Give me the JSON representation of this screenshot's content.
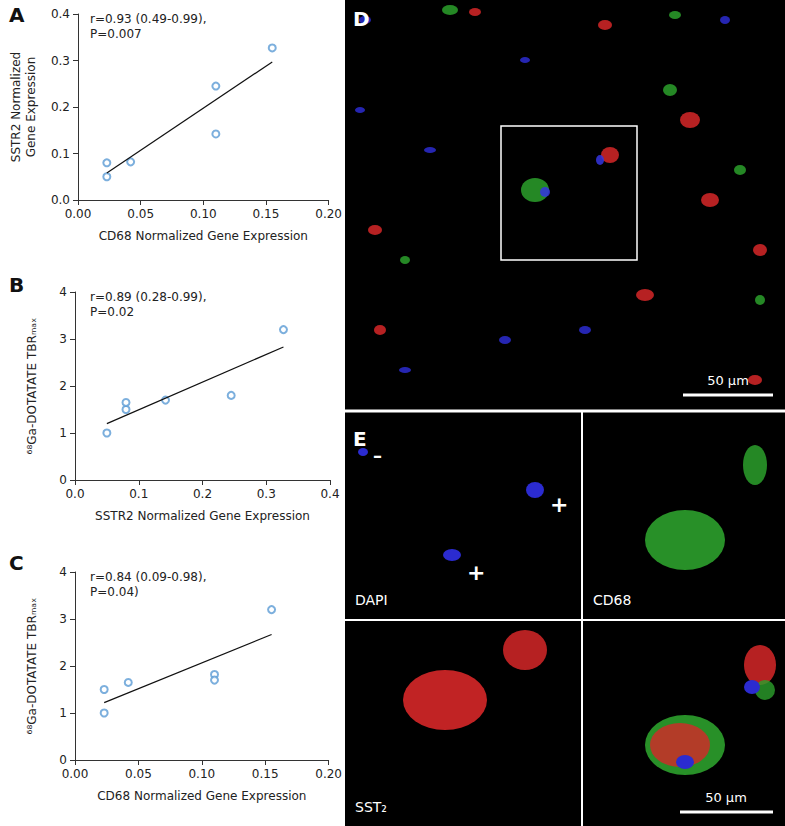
{
  "chart_data": [
    {
      "type": "scatter",
      "panel_label": "A",
      "annotation": "r=0.93 (0.49-0.99),\nP=0.007",
      "x_label": "CD68 Normalized Gene Expression",
      "y_label": "SSTR2 Normalized\nGene Expression",
      "points": {
        "x": [
          0.023,
          0.023,
          0.042,
          0.11,
          0.11,
          0.155
        ],
        "y": [
          0.05,
          0.08,
          0.082,
          0.245,
          0.142,
          0.327
        ]
      },
      "fit": {
        "x": [
          0.023,
          0.155
        ],
        "y": [
          0.058,
          0.297
        ]
      },
      "color": "#5b9bd5",
      "marker": "circle-open",
      "line_style": "solid",
      "xlim": [
        0,
        0.2
      ],
      "xticks": [
        {
          "value": 0,
          "label": "0.00"
        },
        {
          "value": 0.05,
          "label": "0.05"
        },
        {
          "value": 0.1,
          "label": "0.10"
        },
        {
          "value": 0.15,
          "label": "0.15"
        },
        {
          "value": 0.2,
          "label": "0.20"
        }
      ],
      "ylim": [
        0,
        0.4
      ],
      "yticks": [
        {
          "value": 0,
          "label": "0.0"
        },
        0.1,
        0.2,
        0.3,
        0.4
      ],
      "grid": false
    },
    {
      "type": "scatter",
      "panel_label": "B",
      "annotation": "r=0.89 (0.28-0.99),\nP=0.02",
      "x_label": "SSTR2 Normalized Gene Expression",
      "y_label": "⁶⁸Ga-DOTATATE TBRₘₐₓ",
      "points": {
        "x": [
          0.05,
          0.08,
          0.08,
          0.142,
          0.245,
          0.327
        ],
        "y": [
          1.0,
          1.5,
          1.65,
          1.7,
          1.8,
          3.2
        ]
      },
      "fit": {
        "x": [
          0.05,
          0.327
        ],
        "y": [
          1.2,
          2.83
        ]
      },
      "color": "#5b9bd5",
      "marker": "circle-open",
      "line_style": "solid",
      "xlim": [
        0,
        0.4
      ],
      "xticks": [
        {
          "value": 0,
          "label": "0.0"
        },
        0.1,
        0.2,
        0.3,
        0.4
      ],
      "ylim": [
        0,
        4
      ],
      "yticks": [
        0,
        1,
        2,
        3,
        4
      ],
      "grid": false
    },
    {
      "type": "scatter",
      "panel_label": "C",
      "annotation": "r=0.84 (0.09-0.98),\nP=0.04)",
      "x_label": "CD68 Normalized Gene Expression",
      "y_label": "⁶⁸Ga-DOTATATE TBRₘₐₓ",
      "points": {
        "x": [
          0.023,
          0.023,
          0.042,
          0.11,
          0.11,
          0.155
        ],
        "y": [
          1.0,
          1.5,
          1.65,
          1.82,
          1.7,
          3.2
        ]
      },
      "fit": {
        "x": [
          0.023,
          0.155
        ],
        "y": [
          1.22,
          2.67
        ]
      },
      "color": "#5b9bd5",
      "marker": "circle-open",
      "line_style": "solid",
      "xlim": [
        0,
        0.2
      ],
      "xticks": [
        {
          "value": 0,
          "label": "0.00"
        },
        {
          "value": 0.05,
          "label": "0.05"
        },
        {
          "value": 0.1,
          "label": "0.10"
        },
        {
          "value": 0.15,
          "label": "0.15"
        },
        {
          "value": 0.2,
          "label": "0.20"
        }
      ],
      "ylim": [
        0,
        4
      ],
      "yticks": [
        0,
        1,
        2,
        3,
        4
      ],
      "grid": false
    }
  ],
  "images": {
    "D": {
      "panel_label": "D",
      "scale_bar": "50 µm"
    },
    "E": {
      "panel_label": "E",
      "scale_bar": "50 µm",
      "channels": [
        "DAPI",
        "CD68",
        "SST₂"
      ],
      "nucleus_marks": [
        "–",
        "+",
        "+"
      ]
    }
  }
}
